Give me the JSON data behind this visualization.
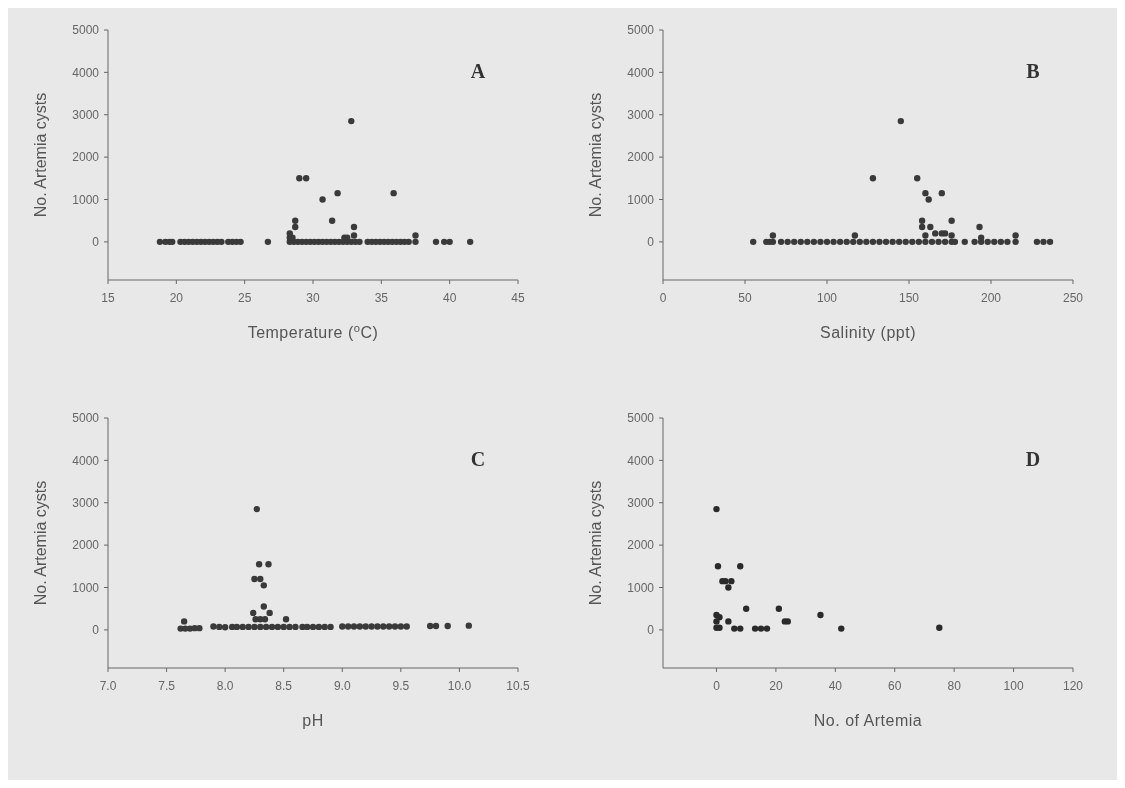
{
  "chart_data": [
    {
      "type": "scatter",
      "xlabel": "Temperature ($^{o}$C)",
      "ylabel": "No. Artemia cysts",
      "annotations": [
        "A"
      ],
      "marker": "circle",
      "xlim": [
        15,
        45
      ],
      "xticks": [
        15,
        20,
        25,
        30,
        35,
        40,
        45
      ],
      "ylim": [
        -900,
        5000
      ],
      "yticks": [
        0,
        1000,
        2000,
        3000,
        4000,
        5000
      ],
      "series": [
        {
          "color": "#3a3a3a",
          "x": [
            18.8,
            19.2,
            19.5,
            19.7,
            20.3,
            20.6,
            20.9,
            21.2,
            21.5,
            21.8,
            22.1,
            22.4,
            22.7,
            23.0,
            23.3,
            23.8,
            24.1,
            24.4,
            24.7,
            26.7,
            28.3,
            28.6,
            28.9,
            29.2,
            29.5,
            29.8,
            30.1,
            30.4,
            30.7,
            31.0,
            31.3,
            31.6,
            31.9,
            32.2,
            32.5,
            32.8,
            33.1,
            33.4,
            34.0,
            34.3,
            34.6,
            34.9,
            35.2,
            35.5,
            35.8,
            36.1,
            36.4,
            36.7,
            37.0,
            37.5,
            39.0,
            39.6,
            40.0,
            41.5,
            28.3,
            28.3,
            28.7,
            28.7,
            29.0,
            29.5,
            30.7,
            31.8,
            31.4,
            33.0,
            32.8,
            35.9,
            37.5,
            33.0,
            32.5,
            28.5,
            32.3
          ],
          "values": [
            0,
            0,
            0,
            0,
            0,
            0,
            0,
            0,
            0,
            0,
            0,
            0,
            0,
            0,
            0,
            0,
            0,
            0,
            0,
            0,
            0,
            0,
            0,
            0,
            0,
            0,
            0,
            0,
            0,
            0,
            0,
            0,
            0,
            0,
            0,
            0,
            0,
            0,
            0,
            0,
            0,
            0,
            0,
            0,
            0,
            0,
            0,
            0,
            0,
            0,
            0,
            0,
            0,
            0,
            100,
            200,
            350,
            500,
            1500,
            1500,
            1000,
            1150,
            500,
            350,
            2850,
            1150,
            150,
            150,
            100,
            100,
            100
          ]
        }
      ]
    },
    {
      "type": "scatter",
      "xlabel": "Salinity (ppt)",
      "ylabel": "No. Artemia cysts",
      "annotations": [
        "B"
      ],
      "marker": "circle",
      "xlim": [
        0,
        250
      ],
      "xticks": [
        0,
        50,
        100,
        150,
        200,
        250
      ],
      "ylim": [
        -900,
        5000
      ],
      "yticks": [
        0,
        1000,
        2000,
        3000,
        4000,
        5000
      ],
      "series": [
        {
          "color": "#3a3a3a",
          "x": [
            55,
            63,
            65,
            67,
            72,
            76,
            80,
            84,
            88,
            92,
            96,
            100,
            104,
            108,
            112,
            116,
            120,
            124,
            128,
            132,
            136,
            140,
            144,
            148,
            152,
            156,
            160,
            164,
            168,
            172,
            176,
            178,
            184,
            190,
            194,
            198,
            202,
            206,
            210,
            215,
            228,
            232,
            236,
            67,
            117,
            128,
            145,
            155,
            160,
            162,
            170,
            176,
            158,
            158,
            163,
            160,
            166,
            170,
            172,
            193,
            176,
            215,
            194
          ],
          "values": [
            0,
            0,
            0,
            0,
            0,
            0,
            0,
            0,
            0,
            0,
            0,
            0,
            0,
            0,
            0,
            0,
            0,
            0,
            0,
            0,
            0,
            0,
            0,
            0,
            0,
            0,
            0,
            0,
            0,
            0,
            0,
            0,
            0,
            0,
            0,
            0,
            0,
            0,
            0,
            0,
            0,
            0,
            0,
            150,
            150,
            1500,
            2850,
            1500,
            1150,
            1000,
            1150,
            500,
            500,
            350,
            350,
            150,
            200,
            200,
            200,
            350,
            150,
            150,
            100
          ]
        }
      ]
    },
    {
      "type": "scatter",
      "xlabel": "pH",
      "ylabel": "No. Artemia cysts",
      "annotations": [
        "C"
      ],
      "marker": "circle",
      "xlim": [
        7,
        10.5
      ],
      "xticks": [
        {
          "value": 7,
          "label": "7.0"
        },
        7.5,
        {
          "value": 8,
          "label": "8.0"
        },
        8.5,
        {
          "value": 9,
          "label": "9.0"
        },
        9.5,
        {
          "value": 10,
          "label": "10.0"
        },
        10.5
      ],
      "ylim": [
        -900,
        5000
      ],
      "yticks": [
        0,
        1000,
        2000,
        3000,
        4000,
        5000
      ],
      "series": [
        {
          "color": "#3a3a3a",
          "x": [
            7.62,
            7.66,
            7.7,
            7.74,
            7.78,
            7.9,
            7.95,
            8.0,
            8.06,
            8.1,
            8.15,
            8.2,
            8.25,
            8.3,
            8.35,
            8.4,
            8.45,
            8.5,
            8.55,
            8.6,
            8.66,
            8.7,
            8.75,
            8.8,
            8.85,
            8.9,
            9.0,
            9.05,
            9.1,
            9.15,
            9.2,
            9.25,
            9.3,
            9.35,
            9.4,
            9.45,
            9.5,
            9.55,
            9.75,
            9.8,
            9.9,
            10.08,
            7.65,
            8.27,
            8.29,
            8.37,
            8.25,
            8.3,
            8.33,
            8.33,
            8.24,
            8.38,
            8.26,
            8.3,
            8.34,
            8.52
          ],
          "values": [
            30,
            30,
            30,
            40,
            40,
            80,
            70,
            60,
            70,
            70,
            70,
            70,
            70,
            70,
            70,
            70,
            70,
            70,
            70,
            70,
            70,
            70,
            70,
            70,
            70,
            70,
            80,
            80,
            80,
            80,
            80,
            80,
            80,
            80,
            80,
            80,
            80,
            80,
            90,
            90,
            90,
            100,
            200,
            2850,
            1550,
            1550,
            1200,
            1200,
            1050,
            550,
            400,
            400,
            250,
            250,
            250,
            250
          ]
        }
      ]
    },
    {
      "type": "scatter",
      "xlabel": "No. of Artemia",
      "ylabel": "No. Artemia cysts",
      "annotations": [
        "D"
      ],
      "marker": "circle",
      "xlim": [
        -18,
        120
      ],
      "xticks": [
        0,
        20,
        40,
        60,
        80,
        100,
        120
      ],
      "ylim": [
        -900,
        5000
      ],
      "yticks": [
        0,
        1000,
        2000,
        3000,
        4000,
        5000
      ],
      "series": [
        {
          "color": "#2a2a2a",
          "x": [
            0,
            0.5,
            8,
            2,
            3,
            5,
            4,
            10,
            21,
            35,
            0,
            1,
            0,
            4,
            23,
            24,
            0,
            1,
            6,
            8,
            13,
            15,
            17,
            42,
            75
          ],
          "values": [
            2850,
            1500,
            1500,
            1150,
            1150,
            1150,
            1000,
            500,
            500,
            350,
            350,
            300,
            200,
            200,
            200,
            200,
            50,
            50,
            30,
            30,
            30,
            30,
            30,
            30,
            50
          ]
        }
      ]
    }
  ]
}
